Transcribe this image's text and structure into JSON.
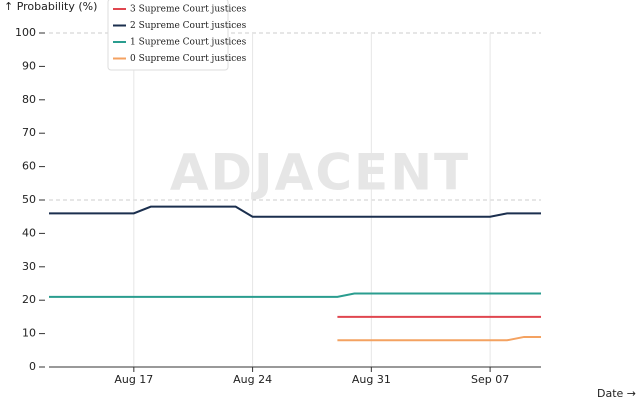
{
  "chart_data": {
    "type": "line",
    "y_label": "↑ Probability (%)",
    "x_label": "Date →",
    "watermark": "ADJACENT",
    "x": [
      "Aug 12",
      "Aug 13",
      "Aug 14",
      "Aug 15",
      "Aug 16",
      "Aug 17",
      "Aug 18",
      "Aug 19",
      "Aug 20",
      "Aug 21",
      "Aug 22",
      "Aug 23",
      "Aug 24",
      "Aug 25",
      "Aug 26",
      "Aug 27",
      "Aug 28",
      "Aug 29",
      "Aug 30",
      "Aug 31",
      "Sep 01",
      "Sep 02",
      "Sep 03",
      "Sep 04",
      "Sep 05",
      "Sep 06",
      "Sep 07",
      "Sep 08",
      "Sep 09",
      "Sep 10"
    ],
    "xlim": [
      "Aug 12",
      "Sep 10"
    ],
    "xticks": [
      "Aug 17",
      "Aug 24",
      "Aug 31",
      "Sep 07"
    ],
    "ylim": [
      0,
      100
    ],
    "yticks": [
      0,
      10,
      20,
      30,
      40,
      50,
      60,
      70,
      80,
      90,
      100
    ],
    "grid": true,
    "series": [
      {
        "name": "3 Supreme Court justices",
        "color": "#e0464f",
        "values": [
          null,
          null,
          null,
          null,
          null,
          null,
          null,
          null,
          null,
          null,
          null,
          null,
          null,
          null,
          null,
          null,
          null,
          15,
          15,
          15,
          15,
          15,
          15,
          15,
          15,
          15,
          15,
          15,
          15,
          15
        ]
      },
      {
        "name": "2 Supreme Court justices",
        "color": "#1b2f4e",
        "values": [
          46,
          46,
          46,
          46,
          46,
          46,
          48,
          48,
          48,
          48,
          48,
          48,
          45,
          45,
          45,
          45,
          45,
          45,
          45,
          45,
          45,
          45,
          45,
          45,
          45,
          45,
          45,
          46,
          46,
          46
        ]
      },
      {
        "name": "1 Supreme Court justices",
        "color": "#2a9d8f",
        "values": [
          21,
          21,
          21,
          21,
          21,
          21,
          21,
          21,
          21,
          21,
          21,
          21,
          21,
          21,
          21,
          21,
          21,
          21,
          22,
          22,
          22,
          22,
          22,
          22,
          22,
          22,
          22,
          22,
          22,
          22
        ]
      },
      {
        "name": "0 Supreme Court justices",
        "color": "#f4a261",
        "values": [
          null,
          null,
          null,
          null,
          null,
          null,
          null,
          null,
          null,
          null,
          null,
          null,
          null,
          null,
          null,
          null,
          null,
          8,
          8,
          8,
          8,
          8,
          8,
          8,
          8,
          8,
          8,
          8,
          9,
          9
        ]
      }
    ]
  }
}
